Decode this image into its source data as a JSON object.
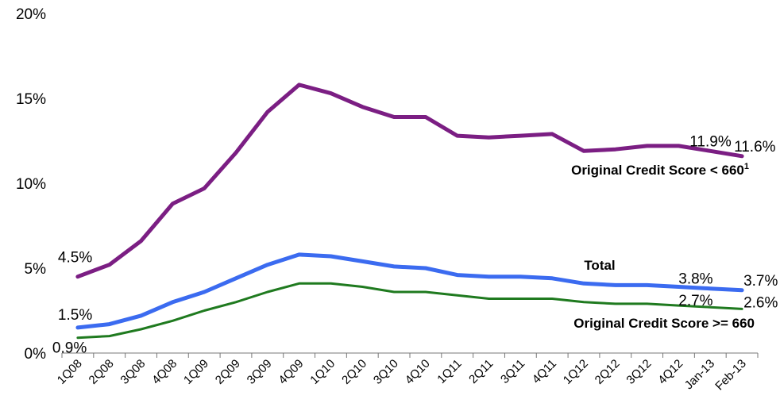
{
  "chart_data": {
    "type": "line",
    "title": "",
    "xlabel": "",
    "ylabel": "",
    "ylim": [
      0,
      20
    ],
    "yticks": [
      0,
      5,
      10,
      15,
      20
    ],
    "ytick_labels": [
      "0%",
      "5%",
      "10%",
      "15%",
      "20%"
    ],
    "grid": false,
    "categories": [
      "1Q08",
      "2Q08",
      "3Q08",
      "4Q08",
      "1Q09",
      "2Q09",
      "3Q09",
      "4Q09",
      "1Q10",
      "2Q10",
      "3Q10",
      "4Q10",
      "1Q11",
      "2Q11",
      "3Q11",
      "4Q11",
      "1Q12",
      "2Q12",
      "3Q12",
      "4Q12",
      "Jan-13",
      "Feb-13"
    ],
    "series": [
      {
        "name": "Original Credit Score < 660",
        "name_superscript": "1",
        "color": "#7B1E83",
        "values": [
          4.5,
          5.2,
          6.6,
          8.8,
          9.7,
          11.8,
          14.2,
          15.8,
          15.3,
          14.5,
          13.9,
          13.9,
          12.8,
          12.7,
          12.8,
          12.9,
          11.9,
          12.0,
          12.2,
          12.2,
          11.9,
          11.6
        ],
        "labels": [
          {
            "index": 0,
            "text": "4.5%"
          },
          {
            "index": 20,
            "text": "11.9%"
          },
          {
            "index": 21,
            "text": "11.6%"
          }
        ]
      },
      {
        "name": "Total",
        "name_superscript": "",
        "color": "#3B6BF0",
        "values": [
          1.5,
          1.7,
          2.2,
          3.0,
          3.6,
          4.4,
          5.2,
          5.8,
          5.7,
          5.4,
          5.1,
          5.0,
          4.6,
          4.5,
          4.5,
          4.4,
          4.1,
          4.0,
          4.0,
          3.9,
          3.8,
          3.7
        ],
        "labels": [
          {
            "index": 0,
            "text": "1.5%"
          },
          {
            "index": 20,
            "text": "3.8%"
          },
          {
            "index": 21,
            "text": "3.7%"
          }
        ]
      },
      {
        "name": "Original Credit Score >= 660",
        "name_superscript": "",
        "color": "#1F7A1F",
        "values": [
          0.9,
          1.0,
          1.4,
          1.9,
          2.5,
          3.0,
          3.6,
          4.1,
          4.1,
          3.9,
          3.6,
          3.6,
          3.4,
          3.2,
          3.2,
          3.2,
          3.0,
          2.9,
          2.9,
          2.8,
          2.7,
          2.6
        ],
        "labels": [
          {
            "index": 0,
            "text": "0.9%"
          },
          {
            "index": 20,
            "text": "2.7%"
          },
          {
            "index": 21,
            "text": "2.6%"
          }
        ]
      }
    ]
  }
}
